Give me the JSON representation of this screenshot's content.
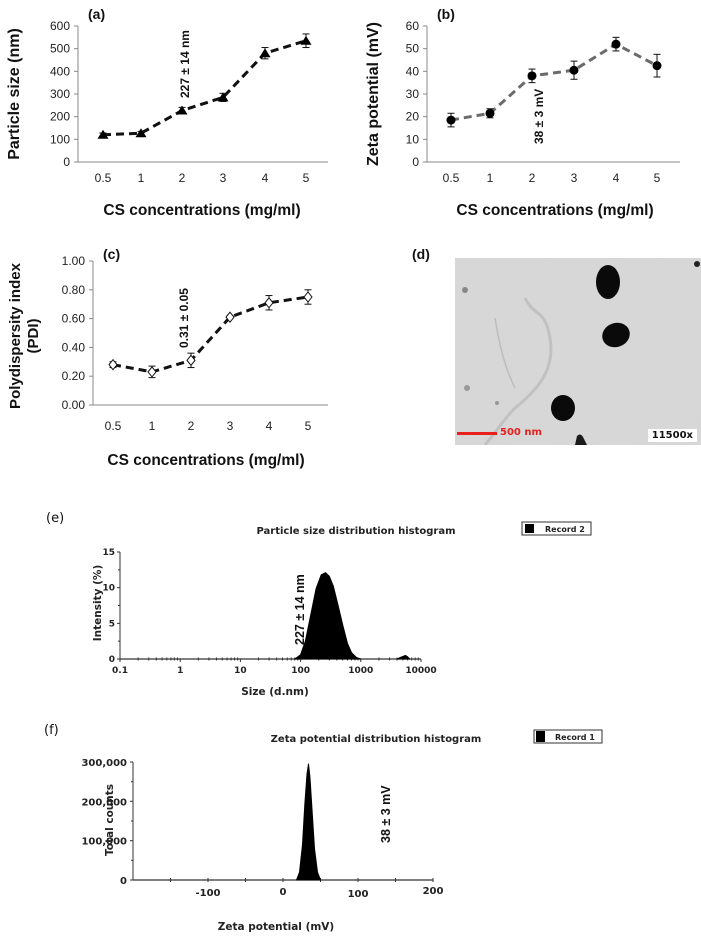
{
  "figure": {
    "panels": [
      "(a)",
      "(b)",
      "(c)",
      "(d)",
      "(e)",
      "(f)"
    ]
  },
  "tem": {
    "scale_bar_label": "500 nm",
    "magnification": "11500x",
    "scale_bar_color": "#e8201e"
  },
  "chart_data": [
    {
      "id": "a",
      "type": "line",
      "panel_label": "(a)",
      "title": "",
      "xlabel": "CS concentrations (mg/ml)",
      "ylabel": "Particle size (nm)",
      "categories": [
        "0.5",
        "1",
        "2",
        "3",
        "4",
        "5"
      ],
      "values": [
        120,
        127,
        227,
        285,
        480,
        535
      ],
      "errors": [
        8,
        8,
        14,
        18,
        25,
        30
      ],
      "ylim": [
        0,
        600
      ],
      "yticks": [
        "0",
        "100",
        "200",
        "300",
        "400",
        "500",
        "600"
      ],
      "marker": "triangle",
      "line_style": "dashed",
      "line_color": "#111111",
      "annotation": "227 ± 14 nm",
      "annotation_category": "2",
      "grid": false
    },
    {
      "id": "b",
      "type": "line",
      "panel_label": "(b)",
      "title": "",
      "xlabel": "CS concentrations (mg/ml)",
      "ylabel": "Zeta potential (mV)",
      "categories": [
        "0.5",
        "1",
        "2",
        "3",
        "4",
        "5"
      ],
      "values": [
        18.5,
        21.5,
        38,
        40.5,
        52,
        42.5
      ],
      "errors": [
        3,
        2,
        3,
        4,
        3,
        5
      ],
      "ylim": [
        0,
        60
      ],
      "yticks": [
        "0",
        "10",
        "20",
        "30",
        "40",
        "50",
        "60"
      ],
      "marker": "circle",
      "line_style": "dashed",
      "line_color": "#6b6b6b",
      "annotation": "38 ± 3 mV",
      "annotation_category": "2",
      "grid": false
    },
    {
      "id": "c",
      "type": "line",
      "panel_label": "(c)",
      "title": "",
      "xlabel": "CS concentrations (mg/ml)",
      "ylabel": "Polydispersity index (PDI)",
      "ylabel_lines": [
        "Polydispersity index",
        "(PDI)"
      ],
      "categories": [
        "0.5",
        "1",
        "2",
        "3",
        "4",
        "5"
      ],
      "values": [
        0.28,
        0.23,
        0.31,
        0.61,
        0.71,
        0.75
      ],
      "errors": [
        0.02,
        0.04,
        0.05,
        0.01,
        0.05,
        0.05
      ],
      "ylim": [
        0,
        1.0
      ],
      "yticks": [
        "0.00",
        "0.20",
        "0.40",
        "0.60",
        "0.80",
        "1.00"
      ],
      "marker": "diamond-open",
      "line_style": "dashed",
      "line_color": "#111111",
      "annotation": "0.31 ± 0.05",
      "annotation_category": "2",
      "grid": false
    },
    {
      "id": "e",
      "type": "area",
      "panel_label": "(e)",
      "title": "Particle size distribution histogram",
      "xlabel": "Size (d.nm)",
      "ylabel": "Intensity (%)",
      "xscale": "log",
      "xlim": [
        0.1,
        10000
      ],
      "xticks": [
        "0.1",
        "1",
        "10",
        "100",
        "1000",
        "10000"
      ],
      "ylim": [
        0,
        15
      ],
      "yticks": [
        "0",
        "5",
        "10",
        "15"
      ],
      "legend": [
        "Record 2"
      ],
      "legend_position": "top-right",
      "series": [
        {
          "name": "Record 2",
          "x": [
            80,
            100,
            120,
            150,
            180,
            220,
            260,
            300,
            350,
            420,
            500,
            600,
            700,
            850,
            1000,
            4000,
            4800,
            5500,
            6000,
            6500
          ],
          "values": [
            0,
            0.6,
            2.5,
            6.5,
            9.8,
            11.8,
            12.1,
            11.6,
            10.2,
            7.5,
            4.8,
            2.2,
            0.9,
            0.2,
            0,
            0,
            0.3,
            0.5,
            0.3,
            0
          ]
        }
      ],
      "annotation": "227 ± 14 nm",
      "color": "#000000"
    },
    {
      "id": "f",
      "type": "area",
      "panel_label": "(f)",
      "title": "Zeta potential distribution histogram",
      "xlabel": "Zeta potential (mV)",
      "ylabel": "Total counts",
      "xlim": [
        -200,
        200
      ],
      "xticks": [
        "-100",
        "0",
        "100",
        "200"
      ],
      "ylim": [
        0,
        300000
      ],
      "yticks": [
        "0",
        "100,000",
        "200,000",
        "300,000"
      ],
      "legend": [
        "Record 1"
      ],
      "legend_position": "top-right",
      "series": [
        {
          "name": "Record 1",
          "x": [
            18,
            22,
            26,
            29,
            32,
            34,
            36,
            39,
            42,
            46,
            50
          ],
          "values": [
            0,
            20000,
            90000,
            190000,
            270000,
            295000,
            260000,
            170000,
            80000,
            20000,
            0
          ]
        }
      ],
      "annotation": "38 ± 3 mV",
      "color": "#000000"
    }
  ]
}
